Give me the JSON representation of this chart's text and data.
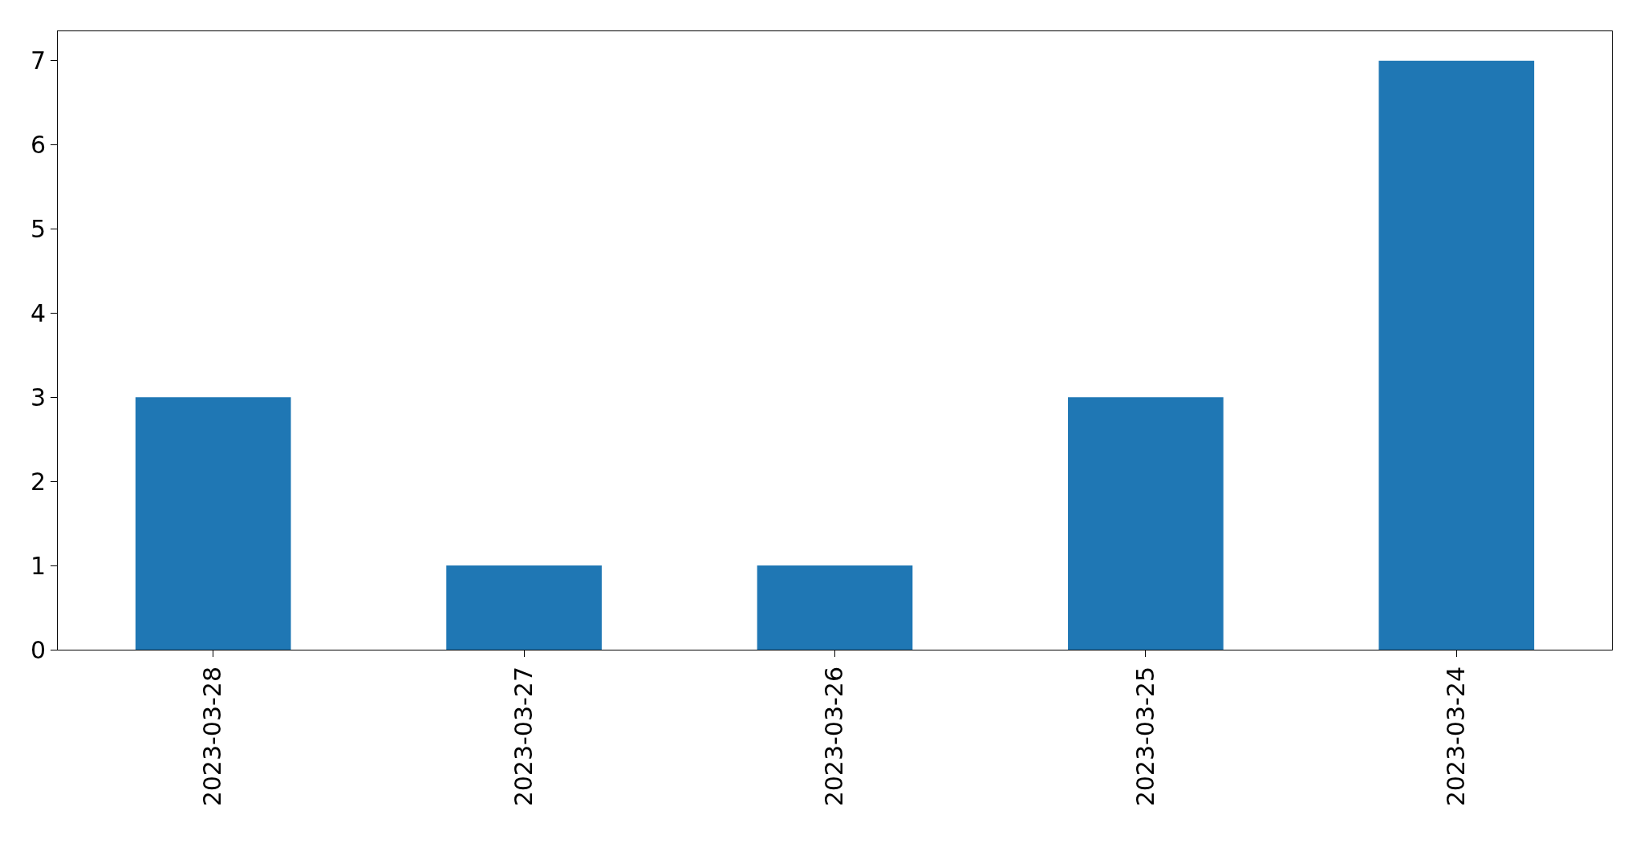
{
  "chart_data": {
    "type": "bar",
    "categories": [
      "2023-03-28",
      "2023-03-27",
      "2023-03-26",
      "2023-03-25",
      "2023-03-24"
    ],
    "values": [
      3,
      1,
      1,
      3,
      7
    ],
    "color": "#1f77b4",
    "ylim": [
      0,
      7.35
    ],
    "yticks": [
      0,
      1,
      2,
      3,
      4,
      5,
      6,
      7
    ]
  }
}
